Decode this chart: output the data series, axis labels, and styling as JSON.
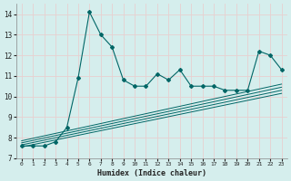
{
  "xlabel": "Humidex (Indice chaleur)",
  "ylabel": "",
  "bg_color": "#d5eeed",
  "line_color": "#006666",
  "grid_color": "#c8e8e5",
  "xlim": [
    -0.5,
    23.5
  ],
  "ylim": [
    7.0,
    14.5
  ],
  "yticks": [
    7,
    8,
    9,
    10,
    11,
    12,
    13,
    14
  ],
  "xticks": [
    0,
    1,
    2,
    3,
    4,
    5,
    6,
    7,
    8,
    9,
    10,
    11,
    12,
    13,
    14,
    15,
    16,
    17,
    18,
    19,
    20,
    21,
    22,
    23
  ],
  "main_x": [
    0,
    1,
    2,
    3,
    4,
    5,
    6,
    7,
    8,
    9,
    10,
    11,
    12,
    13,
    14,
    15,
    16,
    17,
    18,
    19,
    20,
    21,
    22,
    23
  ],
  "main_y": [
    7.6,
    7.6,
    7.6,
    7.8,
    8.5,
    10.9,
    14.1,
    13.0,
    12.4,
    10.8,
    10.5,
    10.5,
    11.1,
    10.8,
    11.3,
    10.5,
    10.5,
    10.5,
    10.3,
    10.3,
    10.3,
    12.2,
    12.0,
    11.3
  ],
  "straight_lines": [
    {
      "x": [
        0,
        23
      ],
      "y": [
        7.55,
        10.15
      ]
    },
    {
      "x": [
        0,
        23
      ],
      "y": [
        7.65,
        10.3
      ]
    },
    {
      "x": [
        0,
        23
      ],
      "y": [
        7.75,
        10.45
      ]
    },
    {
      "x": [
        0,
        23
      ],
      "y": [
        7.85,
        10.6
      ]
    }
  ]
}
